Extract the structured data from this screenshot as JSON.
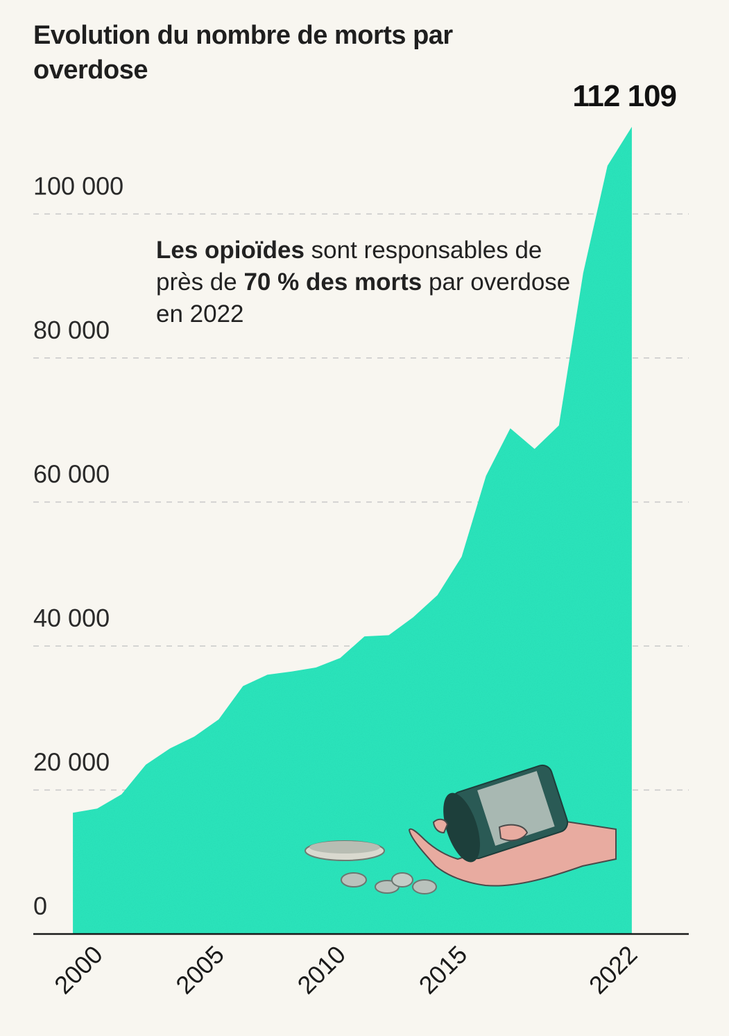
{
  "header": {
    "title": "Evolution du nombre de morts par overdose"
  },
  "annotation": {
    "part1_bold": "Les opioïdes",
    "part2": " sont responsables de près de ",
    "part3_bold": "70 % des morts",
    "part4": " par overdose en 2022"
  },
  "colors": {
    "area": "#2ee8bd",
    "background": "#f8f6f0",
    "text": "#1a1a1a",
    "grid": "#c8c8c8"
  },
  "illustration": "hand-with-spilled-pill-bottle",
  "chart_data": {
    "type": "area",
    "title": "Evolution du nombre de morts par overdose",
    "xlabel": "",
    "ylabel": "",
    "ylim": [
      0,
      110000
    ],
    "xlim": [
      1996,
      2026
    ],
    "grid": true,
    "legend": "none",
    "x": [
      1999,
      2000,
      2001,
      2002,
      2003,
      2004,
      2005,
      2006,
      2007,
      2008,
      2009,
      2010,
      2011,
      2012,
      2013,
      2014,
      2015,
      2016,
      2017,
      2018,
      2019,
      2020,
      2021,
      2022
    ],
    "values": [
      16849,
      17415,
      19394,
      23518,
      25785,
      27424,
      29813,
      34425,
      36010,
      36450,
      37004,
      38329,
      41340,
      41502,
      43982,
      47055,
      52404,
      63632,
      70237,
      67367,
      70630,
      91799,
      106699,
      112109
    ],
    "yticks": [
      0,
      20000,
      40000,
      60000,
      80000,
      100000
    ],
    "ytick_labels": [
      "0",
      "20 000",
      "40 000",
      "60 000",
      "80 000",
      "100 000"
    ],
    "xticks": [
      2000,
      2005,
      2010,
      2015,
      2022
    ],
    "xtick_labels": [
      "2000",
      "2005",
      "2010",
      "2015",
      "2022"
    ],
    "peak_label": "112 109"
  }
}
